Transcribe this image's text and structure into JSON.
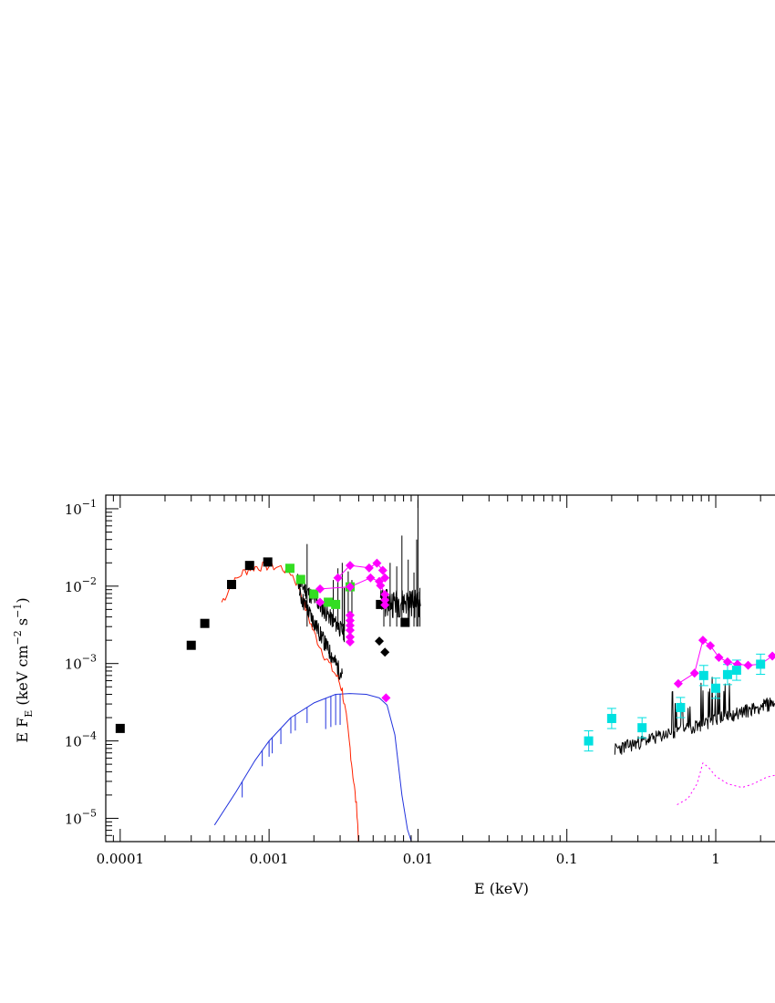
{
  "chart_data": {
    "type": "scatter",
    "title": "",
    "xlabel": "E (keV)",
    "ylabel_parts": [
      "E F",
      "E",
      " (keV cm",
      "−2",
      " s",
      "−1",
      ")"
    ],
    "xscale": "log",
    "yscale": "log",
    "xlim": [
      8e-05,
      2.5
    ],
    "ylim": [
      5e-06,
      0.15
    ],
    "xticks": [
      {
        "value": 0.0001,
        "label": "0.0001"
      },
      {
        "value": 0.001,
        "label": "0.001"
      },
      {
        "value": 0.01,
        "label": "0.01"
      },
      {
        "value": 0.1,
        "label": "0.1"
      },
      {
        "value": 1,
        "label": "1"
      }
    ],
    "yticks": [
      {
        "value": 0.1,
        "mant": "10",
        "exp": "−1"
      },
      {
        "value": 0.01,
        "mant": "10",
        "exp": "−2"
      },
      {
        "value": 0.001,
        "mant": "10",
        "exp": "−3"
      },
      {
        "value": 0.0001,
        "mant": "10",
        "exp": "−4"
      },
      {
        "value": 1e-05,
        "mant": "10",
        "exp": "−5"
      }
    ],
    "grid": false,
    "legend": "none",
    "series": [
      {
        "marker": "square",
        "color": "#000000",
        "points": [
          [
            0.0001,
            0.000145
          ],
          [
            0.0003,
            0.00172
          ],
          [
            0.00037,
            0.0033
          ],
          [
            0.00056,
            0.0105
          ],
          [
            0.00074,
            0.0185
          ],
          [
            0.00098,
            0.0205
          ],
          [
            0.0056,
            0.0058
          ],
          [
            0.0082,
            0.0034
          ]
        ]
      },
      {
        "marker": "diamond",
        "color": "#000000",
        "points": [
          [
            0.0055,
            0.00195
          ],
          [
            0.006,
            0.0014
          ]
        ]
      },
      {
        "marker": "square",
        "color": "#33dd22",
        "points": [
          [
            0.00138,
            0.017
          ],
          [
            0.00163,
            0.0122
          ],
          [
            0.002,
            0.0079
          ],
          [
            0.0025,
            0.0062
          ],
          [
            0.0028,
            0.0058
          ],
          [
            0.0035,
            0.0098
          ]
        ]
      },
      {
        "marker": "diamond",
        "color": "#ff00ff",
        "points": [
          [
            0.0022,
            0.0092
          ],
          [
            0.0022,
            0.0062
          ],
          [
            0.0029,
            0.0128
          ],
          [
            0.0035,
            0.0185
          ],
          [
            0.0035,
            0.0098
          ],
          [
            0.0035,
            0.0042
          ],
          [
            0.0035,
            0.0036
          ],
          [
            0.0035,
            0.0031
          ],
          [
            0.0035,
            0.0027
          ],
          [
            0.0035,
            0.0022
          ],
          [
            0.0035,
            0.0019
          ],
          [
            0.0047,
            0.0172
          ],
          [
            0.0048,
            0.0128
          ],
          [
            0.0053,
            0.0198
          ],
          [
            0.0055,
            0.0115
          ],
          [
            0.0056,
            0.0102
          ],
          [
            0.0058,
            0.016
          ],
          [
            0.006,
            0.0128
          ],
          [
            0.006,
            0.0078
          ],
          [
            0.006,
            0.0066
          ],
          [
            0.006,
            0.0057
          ],
          [
            0.0061,
            0.00036
          ],
          [
            0.56,
            0.00055
          ],
          [
            0.72,
            0.00075
          ],
          [
            0.82,
            0.002
          ],
          [
            0.92,
            0.0017
          ],
          [
            1.05,
            0.0012
          ],
          [
            1.2,
            0.00105
          ],
          [
            1.4,
            0.00098
          ],
          [
            1.65,
            0.00095
          ],
          [
            2.0,
            0.00098
          ],
          [
            2.4,
            0.00125
          ]
        ]
      },
      {
        "marker": "square",
        "color": "#00e0e0",
        "points": [
          [
            0.14,
            0.0001
          ],
          [
            0.2,
            0.000195
          ],
          [
            0.32,
            0.000148
          ],
          [
            0.58,
            0.00027
          ],
          [
            0.83,
            0.0007
          ],
          [
            1.0,
            0.00048
          ],
          [
            1.2,
            0.00072
          ],
          [
            1.38,
            0.00082
          ],
          [
            2.0,
            0.00098
          ]
        ]
      }
    ],
    "colors": {
      "red_curve": "#ff2200",
      "blue_curve": "#2233dd",
      "black_spectrum": "#000000",
      "magenta_line": "#ff00ff",
      "magenta_dotted": "#ff00ff",
      "cyan_errorbar": "#00e0e0"
    }
  }
}
